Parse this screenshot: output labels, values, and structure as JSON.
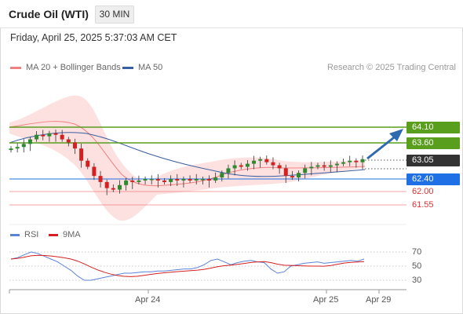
{
  "header": {
    "instrument": "Crude Oil (WTI)",
    "timeframe": "30 MIN"
  },
  "timestamp": "Friday, April 25, 2025 5:37:03 AM CET",
  "legend": {
    "bollinger": "MA 20 + Bollinger Bands",
    "ma50": "MA 50",
    "bollinger_color": "#f08080",
    "ma50_color": "#3a5fa0"
  },
  "credit": "Research © 2025 Trading Central",
  "levels": {
    "r2": "64.10",
    "r1": "63.60",
    "last": "63.05",
    "pivot": "62.40",
    "s1": "62.00",
    "s2": "61.55",
    "resistance_color": "#5a9e1e",
    "pivot_color": "#1f6fe5",
    "support_color": "#e0302f",
    "last_color": "#333333"
  },
  "rsi_legend": {
    "rsi": "RSI",
    "ma": "9MA",
    "rsi_color": "#5b83d8",
    "ma_color": "#d42020"
  },
  "rsi_axis": [
    "70",
    "50",
    "30"
  ],
  "x_axis": [
    "Apr 24",
    "Apr 25",
    "Apr 29"
  ],
  "chart_data": [
    {
      "type": "candlestick",
      "x_ticks": [
        "Apr 24",
        "Apr 25",
        "Apr 29"
      ],
      "price_levels": [
        64.1,
        63.6,
        63.05,
        62.4,
        62.0,
        61.55
      ],
      "last_price": 63.05,
      "close": [
        63.4,
        63.45,
        63.55,
        63.7,
        63.85,
        63.8,
        63.9,
        63.85,
        63.7,
        63.6,
        63.4,
        63.0,
        62.8,
        62.5,
        62.3,
        62.1,
        62.05,
        62.2,
        62.35,
        62.3,
        62.35,
        62.4,
        62.4,
        62.35,
        62.3,
        62.4,
        62.35,
        62.4,
        62.35,
        62.4,
        62.4,
        62.35,
        62.45,
        62.6,
        62.75,
        62.85,
        62.8,
        62.9,
        63.0,
        63.05,
        62.95,
        62.85,
        62.75,
        62.5,
        62.45,
        62.6,
        62.75,
        62.8,
        62.85,
        62.8,
        62.85,
        62.9,
        62.95,
        63.0,
        62.95,
        63.05
      ],
      "series": [
        {
          "name": "MA 20 + Bollinger Bands"
        },
        {
          "name": "MA 50"
        }
      ]
    },
    {
      "type": "line",
      "y_ticks": [
        70,
        50,
        30
      ],
      "rsi": [
        60,
        62,
        66,
        70,
        68,
        64,
        60,
        56,
        50,
        44,
        36,
        30,
        30,
        32,
        34,
        36,
        38,
        40,
        40,
        41,
        42,
        42,
        43,
        43,
        44,
        45,
        46,
        46,
        48,
        52,
        58,
        60,
        56,
        52,
        55,
        57,
        58,
        56,
        55,
        46,
        40,
        42,
        50,
        52,
        54,
        55,
        56,
        54,
        55,
        56,
        57,
        58,
        57,
        60
      ],
      "series": [
        {
          "name": "RSI"
        },
        {
          "name": "9MA"
        }
      ]
    }
  ]
}
